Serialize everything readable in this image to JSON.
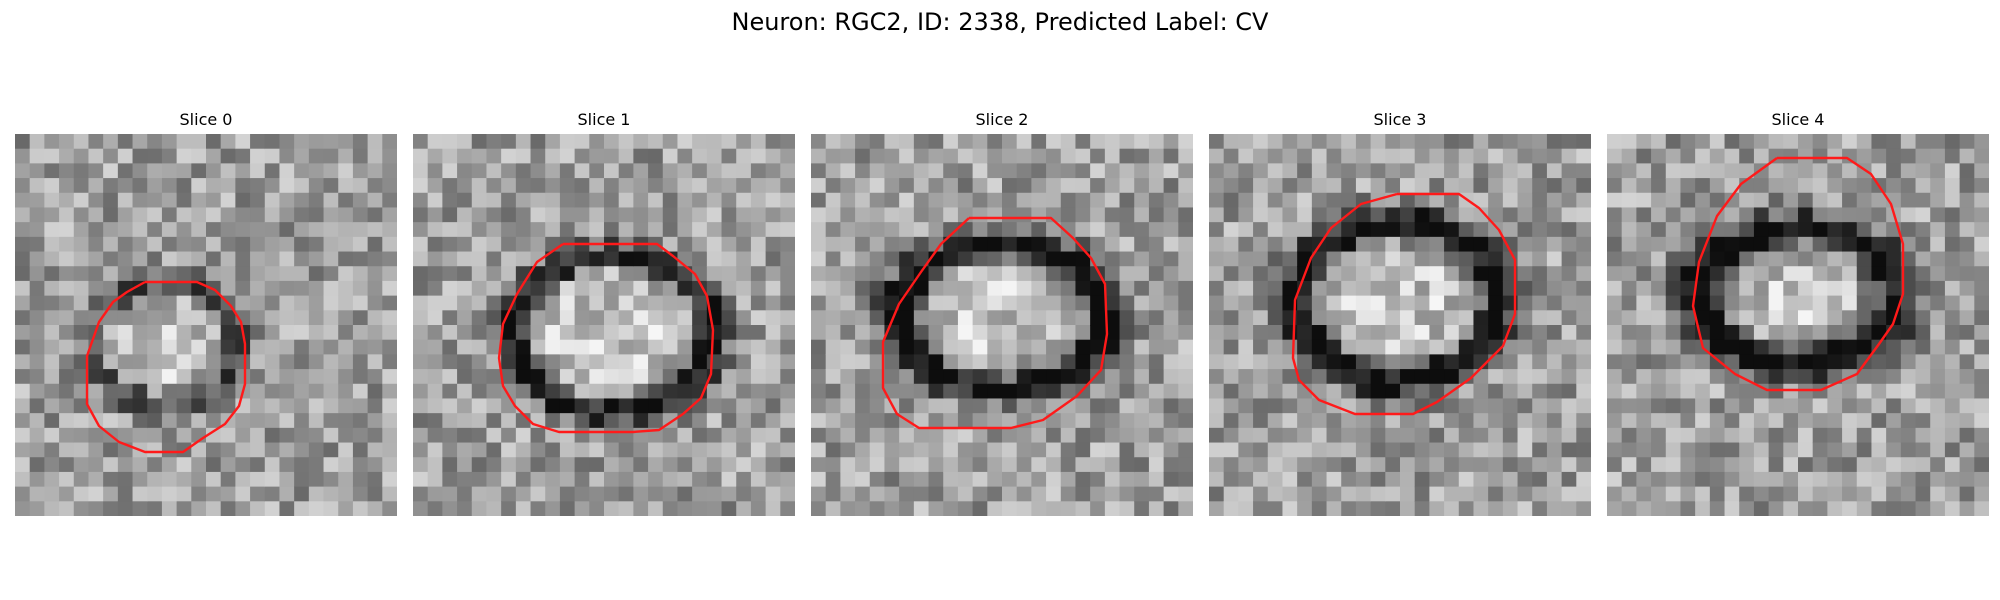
{
  "figure": {
    "title": "Neuron: RGC2, ID: 2338, Predicted Label: CV"
  },
  "colors": {
    "contour": "#ff1a1a",
    "background": "#ffffff"
  },
  "panels": [
    {
      "title": "Slice 0"
    },
    {
      "title": "Slice 1"
    },
    {
      "title": "Slice 2"
    },
    {
      "title": "Slice 3"
    },
    {
      "title": "Slice 4"
    }
  ]
}
